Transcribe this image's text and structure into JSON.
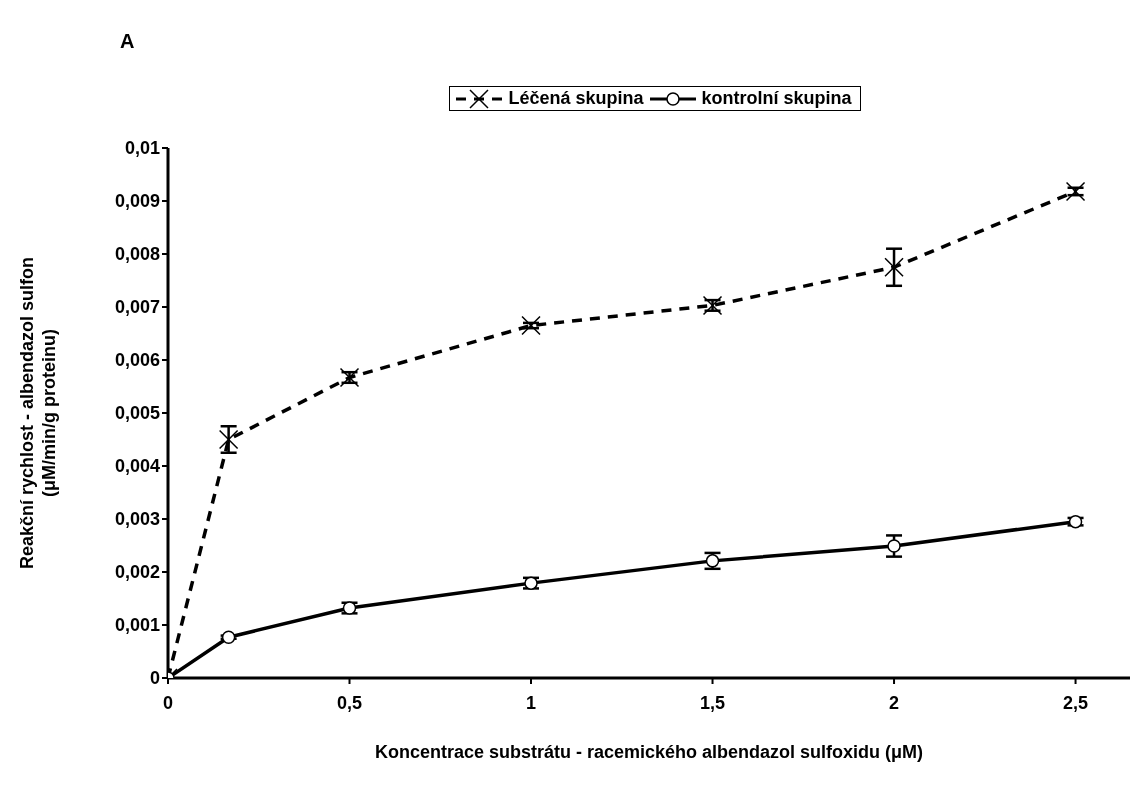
{
  "chart_data": {
    "type": "line",
    "title": "A",
    "xlabel": "Koncentrace substrátu - racemického albendazol sulfoxidu (μM)",
    "ylabel": "Reakční rychlost - albendazol sulfon\n(μM/min/g proteinu)",
    "x": [
      0,
      0.167,
      0.5,
      1,
      1.5,
      2,
      2.5
    ],
    "series": [
      {
        "name": "Léčená skupina",
        "color": "#000000",
        "line_style": "dashed",
        "marker": "cross",
        "values": [
          0,
          0.0045,
          0.00567,
          0.00665,
          0.00703,
          0.00775,
          0.00918
        ],
        "errors": [
          null,
          0.00025,
          0.0001,
          5e-05,
          0.0001,
          0.00035,
          7e-05
        ]
      },
      {
        "name": "kontrolní skupina",
        "color": "#000000",
        "line_style": "solid",
        "marker": "circle",
        "values": [
          0,
          0.00077,
          0.00132,
          0.00179,
          0.00221,
          0.00249,
          0.00295
        ],
        "errors": [
          null,
          3e-05,
          0.0001,
          0.0001,
          0.00015,
          0.0002,
          7e-05
        ]
      }
    ],
    "xlim": [
      0,
      2.65
    ],
    "xticks": [
      {
        "value": 0,
        "label": "0"
      },
      {
        "value": 0.5,
        "label": "0,5"
      },
      {
        "value": 1,
        "label": "1"
      },
      {
        "value": 1.5,
        "label": "1,5"
      },
      {
        "value": 2,
        "label": "2"
      },
      {
        "value": 2.5,
        "label": "2,5"
      }
    ],
    "ylim": [
      0,
      0.01
    ],
    "yticks": [
      {
        "value": 0,
        "label": "0"
      },
      {
        "value": 0.001,
        "label": "0,001"
      },
      {
        "value": 0.002,
        "label": "0,002"
      },
      {
        "value": 0.003,
        "label": "0,003"
      },
      {
        "value": 0.004,
        "label": "0,004"
      },
      {
        "value": 0.005,
        "label": "0,005"
      },
      {
        "value": 0.006,
        "label": "0,006"
      },
      {
        "value": 0.007,
        "label": "0,007"
      },
      {
        "value": 0.008,
        "label": "0,008"
      },
      {
        "value": 0.009,
        "label": "0,009"
      },
      {
        "value": 0.01,
        "label": "0,01"
      }
    ],
    "grid": false,
    "legend": "top"
  }
}
